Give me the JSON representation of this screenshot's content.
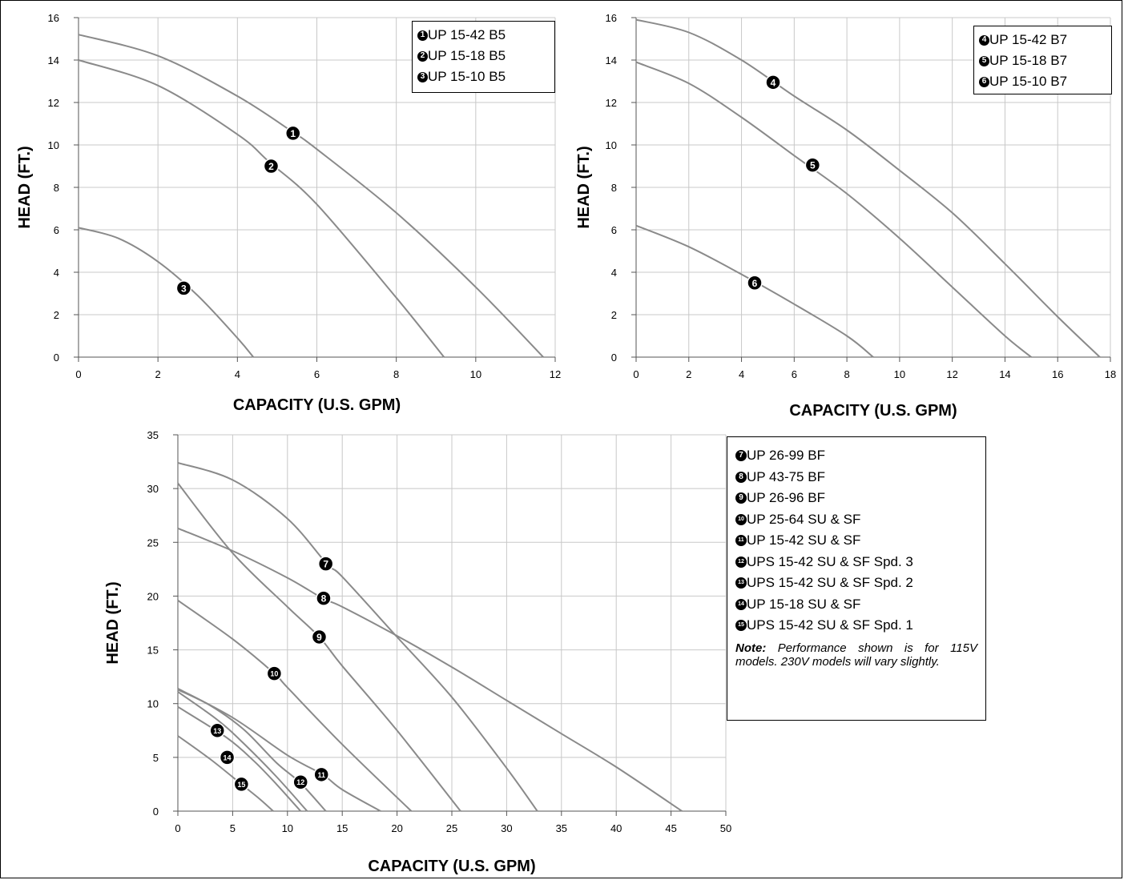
{
  "chart_data": [
    {
      "type": "line",
      "xlabel": "CAPACITY (U.S. GPM)",
      "ylabel": "HEAD (FT.)",
      "xlim": [
        0,
        12
      ],
      "ylim": [
        0,
        16
      ],
      "xticks": [
        0,
        2,
        4,
        6,
        8,
        10,
        12
      ],
      "yticks": [
        0,
        2,
        4,
        6,
        8,
        10,
        12,
        14,
        16
      ],
      "grid": true,
      "legend_position": "top-right",
      "series": [
        {
          "marker": "1",
          "name": "UP 15-42 B5",
          "x": [
            0,
            2,
            4,
            5.4,
            6,
            8,
            10,
            11.7
          ],
          "y": [
            15.2,
            14.2,
            12.3,
            10.6,
            9.8,
            6.8,
            3.3,
            0
          ],
          "marker_at": [
            5.4,
            10.55
          ]
        },
        {
          "marker": "2",
          "name": "UP 15-18 B5",
          "x": [
            0,
            2,
            4,
            4.8,
            6,
            8,
            9.2
          ],
          "y": [
            14.0,
            12.8,
            10.5,
            9.2,
            7.2,
            2.8,
            0
          ],
          "marker_at": [
            4.85,
            9.0
          ]
        },
        {
          "marker": "3",
          "name": "UP 15-10 B5",
          "x": [
            0,
            1,
            2,
            3,
            4,
            4.4
          ],
          "y": [
            6.1,
            5.6,
            4.5,
            2.9,
            0.9,
            0
          ],
          "marker_at": [
            2.65,
            3.25
          ]
        }
      ]
    },
    {
      "type": "line",
      "xlabel": "CAPACITY (U.S. GPM)",
      "ylabel": "HEAD (FT.)",
      "xlim": [
        0,
        18
      ],
      "ylim": [
        0,
        16
      ],
      "xticks": [
        0,
        2,
        4,
        6,
        8,
        10,
        12,
        14,
        16,
        18
      ],
      "yticks": [
        0,
        2,
        4,
        6,
        8,
        10,
        12,
        14,
        16
      ],
      "grid": true,
      "legend_position": "top-right",
      "series": [
        {
          "marker": "4",
          "name": "UP 15-42 B7",
          "x": [
            0,
            2,
            4,
            6,
            8,
            10,
            12,
            14,
            16,
            17.6
          ],
          "y": [
            15.9,
            15.3,
            14.0,
            12.3,
            10.7,
            8.8,
            6.8,
            4.4,
            1.9,
            0
          ],
          "marker_at": [
            5.2,
            12.95
          ]
        },
        {
          "marker": "5",
          "name": "UP 15-18 B7",
          "x": [
            0,
            2,
            4,
            6,
            8,
            10,
            12,
            14,
            15
          ],
          "y": [
            13.9,
            12.9,
            11.3,
            9.5,
            7.7,
            5.6,
            3.3,
            1.0,
            0
          ],
          "marker_at": [
            6.7,
            9.05
          ]
        },
        {
          "marker": "6",
          "name": "UP 15-10 B7",
          "x": [
            0,
            2,
            4,
            6,
            8,
            9
          ],
          "y": [
            6.2,
            5.2,
            3.9,
            2.5,
            1.0,
            0
          ],
          "marker_at": [
            4.5,
            3.5
          ]
        }
      ]
    },
    {
      "type": "line",
      "xlabel": "CAPACITY (U.S. GPM)",
      "ylabel": "HEAD (FT.)",
      "xlim": [
        0,
        50
      ],
      "ylim": [
        0,
        35
      ],
      "xticks": [
        0,
        5,
        10,
        15,
        20,
        25,
        30,
        35,
        40,
        45,
        50
      ],
      "yticks": [
        0,
        5,
        10,
        15,
        20,
        25,
        30,
        35
      ],
      "grid": true,
      "legend_position": "right",
      "note_label": "Note:",
      "note_text": "Performance shown is for 115V models. 230V models will vary slightly.",
      "series": [
        {
          "marker": "7",
          "name": "UP 26-99 BF",
          "x": [
            0,
            5,
            10,
            13.6,
            15,
            20,
            25,
            30,
            32.8
          ],
          "y": [
            32.4,
            30.8,
            27.2,
            23.0,
            21.8,
            16.2,
            10.6,
            4.0,
            0
          ],
          "marker_at": [
            13.5,
            23.0
          ]
        },
        {
          "marker": "8",
          "name": "UP 43-75 BF",
          "x": [
            0,
            5,
            10,
            13.2,
            15,
            20,
            25,
            30,
            35,
            40,
            46
          ],
          "y": [
            26.3,
            24.2,
            21.7,
            19.8,
            19.0,
            16.3,
            13.4,
            10.3,
            7.2,
            4.1,
            0
          ],
          "marker_at": [
            13.3,
            19.8
          ]
        },
        {
          "marker": "9",
          "name": "UP 26-96 BF",
          "x": [
            0,
            5,
            10,
            12.9,
            15,
            20,
            25.8
          ],
          "y": [
            30.5,
            24.0,
            19.0,
            16.2,
            13.5,
            7.5,
            0
          ],
          "marker_at": [
            12.9,
            16.2
          ]
        },
        {
          "marker": "10",
          "name": "UP 25-64 SU & SF",
          "x": [
            0,
            5,
            8.8,
            10,
            15,
            21.3
          ],
          "y": [
            19.6,
            16.0,
            12.8,
            11.5,
            6.2,
            0
          ],
          "marker_at": [
            8.8,
            12.8
          ]
        },
        {
          "marker": "11",
          "name": "UP 15-42 SU & SF",
          "x": [
            0,
            5,
            10,
            13.2,
            15,
            18.5
          ],
          "y": [
            11.4,
            8.7,
            5.2,
            3.4,
            2.0,
            0
          ],
          "marker_at": [
            13.1,
            3.4
          ]
        },
        {
          "marker": "12",
          "name": "UPS 15-42 SU & SF Spd. 3",
          "x": [
            0,
            3,
            6,
            9,
            11.2,
            13.5
          ],
          "y": [
            11.3,
            9.8,
            7.6,
            4.5,
            2.6,
            0
          ],
          "marker_at": [
            11.2,
            2.7
          ]
        },
        {
          "marker": "13",
          "name": "UPS 15-42 SU & SF Spd. 2",
          "x": [
            0,
            3.6,
            6,
            9,
            11.8
          ],
          "y": [
            11.1,
            8.5,
            6.3,
            3.2,
            0
          ],
          "marker_at": [
            3.6,
            7.5
          ]
        },
        {
          "marker": "14",
          "name": "UP 15-18 SU & SF",
          "x": [
            0,
            4.5,
            7,
            9,
            11.2
          ],
          "y": [
            9.7,
            6.8,
            4.6,
            2.5,
            0
          ],
          "marker_at": [
            4.5,
            5.0
          ]
        },
        {
          "marker": "15",
          "name": "UPS 15-42 SU & SF Spd. 1",
          "x": [
            0,
            3,
            5.8,
            7.5,
            8.7
          ],
          "y": [
            7.0,
            4.8,
            2.5,
            1.1,
            0
          ],
          "marker_at": [
            5.8,
            2.5
          ]
        }
      ]
    }
  ]
}
